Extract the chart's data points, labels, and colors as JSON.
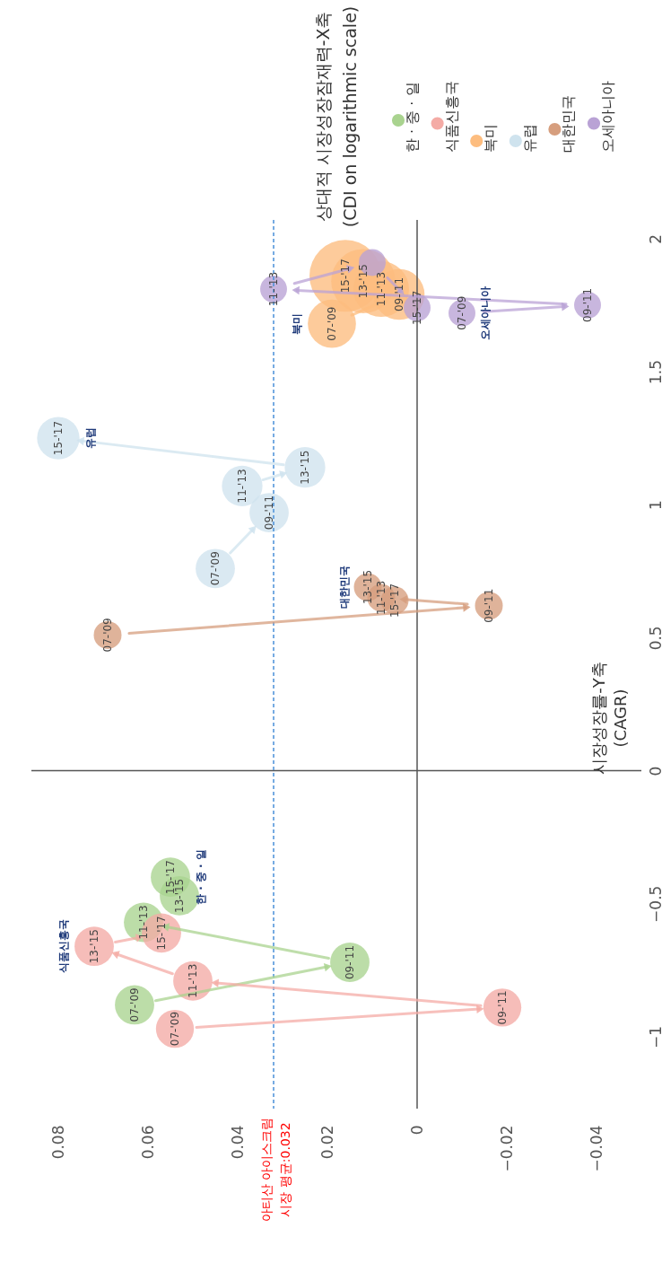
{
  "chart_data": {
    "type": "bubble",
    "ylabel": "상대적 시장성장잠재력-X축\n(CDI on logarithmic scale)",
    "xlim": [
      0.086,
      -0.05
    ],
    "ylim": [
      -1.27,
      2.07
    ],
    "xticks": [
      0.08,
      0.06,
      0.04,
      0.02,
      0,
      {
        "value": -0.02,
        "label": "−0.02"
      },
      {
        "value": -0.04,
        "label": "−0.04"
      }
    ],
    "yticks": [
      {
        "value": -1,
        "label": "−1"
      },
      {
        "value": -0.5,
        "label": "−0.5"
      },
      0,
      0.5,
      1,
      1.5,
      2
    ],
    "grid": false,
    "legend": "top right",
    "series": [
      {
        "name": "한 · 중 · 일",
        "color": "#a9d38f",
        "x": [
          0.063,
          0.015,
          0.061,
          0.053,
          0.055
        ],
        "values": [
          -0.88,
          -0.72,
          -0.57,
          -0.47,
          -0.4
        ],
        "sizes": [
          0.3,
          0.3,
          0.3,
          0.3,
          0.3
        ],
        "value_labels": [
          "07-'09",
          "09-'11",
          "11-'13",
          "13-'15",
          "15-'17"
        ]
      },
      {
        "name": "식품신흥국",
        "color": "#f4aba5",
        "x": [
          0.054,
          -0.019,
          0.05,
          0.072,
          0.057
        ],
        "values": [
          -0.97,
          -0.89,
          -0.79,
          -0.66,
          -0.61
        ],
        "sizes": [
          0.28,
          0.28,
          0.3,
          0.3,
          0.3
        ],
        "value_labels": [
          "07-'09",
          "09-'11",
          "11-'13",
          "13-'15",
          "15-'17"
        ]
      },
      {
        "name": "북미",
        "color": "#fdbd7f",
        "x": [
          0.019,
          0.004,
          0.008,
          0.012,
          0.016
        ],
        "values": [
          1.68,
          1.79,
          1.81,
          1.84,
          1.86
        ],
        "sizes": [
          0.45,
          0.5,
          0.6,
          0.8,
          1
        ],
        "value_labels": [
          "07-'09",
          "09-'11",
          "11-'13",
          "13-'15",
          "15-'17"
        ]
      },
      {
        "name": "유럽",
        "color": "#cfe3ee",
        "x": [
          0.045,
          0.033,
          0.039,
          0.025,
          0.08
        ],
        "values": [
          0.76,
          0.97,
          1.07,
          1.14,
          1.25
        ],
        "sizes": [
          0.3,
          0.3,
          0.32,
          0.32,
          0.35
        ],
        "value_labels": [
          "07-'09",
          "09-'11",
          "11-'13",
          "13-'15",
          "15-'17"
        ]
      },
      {
        "name": "대한민국",
        "color": "#d69e7e",
        "x": [
          0.069,
          -0.016,
          0.008,
          0.011,
          0.005
        ],
        "values": [
          0.51,
          0.62,
          0.65,
          0.69,
          0.64
        ],
        "sizes": [
          0.15,
          0.15,
          0.15,
          0.15,
          0.15
        ],
        "value_labels": [
          "07-'09",
          "09-'11",
          "11-'13",
          "13-'15",
          "15-'17"
        ]
      },
      {
        "name": "오세아니아",
        "color": "#b9a2d5",
        "x": [
          -0.01,
          -0.038,
          0.032,
          0.01,
          0.0
        ],
        "values": [
          1.72,
          1.75,
          1.81,
          1.91,
          1.74
        ],
        "sizes": [
          0.14,
          0.14,
          0.14,
          0.14,
          0.14
        ],
        "value_labels": [
          "07-'09",
          "09-'11",
          "11-'13",
          null,
          "15-'17"
        ]
      }
    ],
    "ref_lines": [
      {
        "axis": "x",
        "value": 0,
        "color": "#555555",
        "line_style": "solid"
      },
      {
        "axis": "y",
        "value": 0,
        "color": "#555555",
        "line_style": "solid"
      },
      {
        "axis": "x",
        "value": 0.032,
        "label": "아티산 아이스크림 시장 평균:0.032",
        "color": "#4a90d9",
        "line_style": "dashed"
      }
    ],
    "annotations": [
      "시장성장률-Y축\n(CAGR)",
      {
        "text": "한 · 중 · 일",
        "x": 0.055,
        "y": -0.4
      },
      {
        "text": "식품신흥국",
        "x": 0.072,
        "y": -0.66
      },
      {
        "text": "유럽",
        "x": 0.08,
        "y": 1.25
      },
      {
        "text": "대한민국",
        "x": 0.011,
        "y": 0.69
      },
      {
        "text": "북미",
        "x": 0.019,
        "y": 1.68
      },
      {
        "text": "오세아니아",
        "x": -0.01,
        "y": 1.72
      }
    ]
  }
}
